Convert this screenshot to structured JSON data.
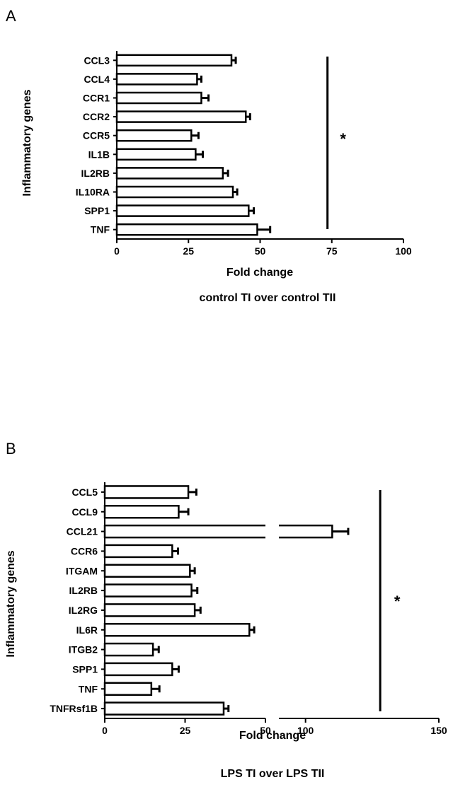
{
  "chart_data": [
    {
      "type": "bar",
      "orientation": "horizontal",
      "panel_label": "A",
      "ylabel": "Inflammatory genes",
      "xlabel": "Fold change",
      "subtitle": "control TI over control TII",
      "xlim": [
        0,
        100
      ],
      "xticks": [
        "0",
        "25",
        "50",
        "75",
        "100"
      ],
      "categories": [
        "CCL3",
        "CCL4",
        "CCR1",
        "CCR2",
        "CCR5",
        "IL1B",
        "IL2RB",
        "IL10RA",
        "SPP1",
        "TNF"
      ],
      "values": [
        40,
        28,
        29.5,
        45,
        26,
        27.5,
        37,
        40.5,
        46,
        49
      ],
      "errors": [
        1.5,
        1.5,
        2.5,
        1.5,
        2.5,
        2.5,
        1.8,
        1.5,
        1.8,
        4.5
      ],
      "significance": "*",
      "significance_x": 73.5
    },
    {
      "type": "bar",
      "orientation": "horizontal",
      "panel_label": "B",
      "ylabel": "Inflammatory genes",
      "xlabel": "Fold change",
      "subtitle": "LPS TI over LPS TII",
      "axis_break": true,
      "xlim": [
        0,
        150
      ],
      "xticks": [
        "0",
        "25",
        "50",
        "100",
        "150"
      ],
      "categories": [
        "CCL5",
        "CCL9",
        "CCL21",
        "CCR6",
        "ITGAM",
        "IL2RB",
        "IL2RG",
        "IL6R",
        "ITGB2",
        "SPP1",
        "TNF",
        "TNFRsf1B"
      ],
      "values": [
        26,
        23,
        110,
        21,
        26.5,
        27,
        28,
        45,
        15,
        21,
        14.5,
        37
      ],
      "errors": [
        2.5,
        3,
        6,
        1.8,
        1.5,
        1.8,
        1.8,
        1.5,
        1.8,
        2,
        2.5,
        1.5
      ],
      "significance": "*",
      "significance_x": 128
    }
  ]
}
